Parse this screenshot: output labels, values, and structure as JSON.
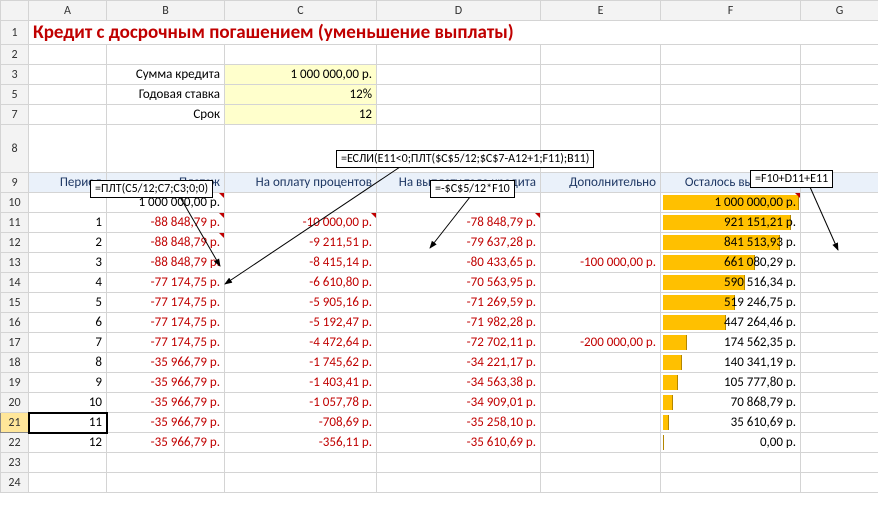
{
  "columns": [
    "A",
    "B",
    "C",
    "D",
    "E",
    "F",
    "G"
  ],
  "title": "Кредит с досрочным погашением (уменьшение выплаты)",
  "params": [
    {
      "label": "Сумма кредита",
      "value": "1 000 000,00 р."
    },
    {
      "label": "Годовая ставка",
      "value": "12%"
    },
    {
      "label": "Срок",
      "value": "12"
    }
  ],
  "callouts": {
    "plt": "=ПЛТ(С5/12;С7;С3;0;0)",
    "esli": "=ЕСЛИ(E11<0;ПЛТ($C$5/12;$C$7-A12+1;F11);B11)",
    "int": "=-$C$5/12*F10",
    "rem": "=F10+D11+E11"
  },
  "headers": {
    "period": "Период",
    "payment": "Платеж",
    "interest": "На оплату процентов",
    "body": "На выплату тела кредита",
    "extra": "Дополнительно",
    "remaining": "Осталось выплатить"
  },
  "row10": {
    "pay": "1 000 000,00 р.",
    "rem": "1 000 000,00 р."
  },
  "rows": [
    {
      "r": 11,
      "p": "1",
      "pay": "-88 848,79 р.",
      "int": "-10 000,00 р.",
      "body": "-78 848,79 р.",
      "extra": "",
      "rem": "921 151,21 р.",
      "bar": 92
    },
    {
      "r": 12,
      "p": "2",
      "pay": "-88 848,79 р.",
      "int": "-9 211,51 р.",
      "body": "-79 637,28 р.",
      "extra": "",
      "rem": "841 513,93 р.",
      "bar": 84
    },
    {
      "r": 13,
      "p": "3",
      "pay": "-88 848,79 р.",
      "int": "-8 415,14 р.",
      "body": "-80 433,65 р.",
      "extra": "-100 000,00 р.",
      "rem": "661 080,29 р.",
      "bar": 66
    },
    {
      "r": 14,
      "p": "4",
      "pay": "-77 174,75 р.",
      "int": "-6 610,80 р.",
      "body": "-70 563,95 р.",
      "extra": "",
      "rem": "590 516,34 р.",
      "bar": 59
    },
    {
      "r": 15,
      "p": "5",
      "pay": "-77 174,75 р.",
      "int": "-5 905,16 р.",
      "body": "-71 269,59 р.",
      "extra": "",
      "rem": "519 246,75 р.",
      "bar": 52
    },
    {
      "r": 16,
      "p": "6",
      "pay": "-77 174,75 р.",
      "int": "-5 192,47 р.",
      "body": "-71 982,28 р.",
      "extra": "",
      "rem": "447 264,46 р.",
      "bar": 45
    },
    {
      "r": 17,
      "p": "7",
      "pay": "-77 174,75 р.",
      "int": "-4 472,64 р.",
      "body": "-72 702,11 р.",
      "extra": "-200 000,00 р.",
      "rem": "174 562,35 р.",
      "bar": 17
    },
    {
      "r": 18,
      "p": "8",
      "pay": "-35 966,79 р.",
      "int": "-1 745,62 р.",
      "body": "-34 221,17 р.",
      "extra": "",
      "rem": "140 341,19 р.",
      "bar": 14
    },
    {
      "r": 19,
      "p": "9",
      "pay": "-35 966,79 р.",
      "int": "-1 403,41 р.",
      "body": "-34 563,38 р.",
      "extra": "",
      "rem": "105 777,80 р.",
      "bar": 11
    },
    {
      "r": 20,
      "p": "10",
      "pay": "-35 966,79 р.",
      "int": "-1 057,78 р.",
      "body": "-34 909,01 р.",
      "extra": "",
      "rem": "70 868,79 р.",
      "bar": 7
    },
    {
      "r": 21,
      "p": "11",
      "pay": "-35 966,79 р.",
      "int": "-708,69 р.",
      "body": "-35 258,10 р.",
      "extra": "",
      "rem": "35 610,69 р.",
      "bar": 4
    },
    {
      "r": 22,
      "p": "12",
      "pay": "-35 966,79 р.",
      "int": "-356,11 р.",
      "body": "-35 610,69 р.",
      "extra": "",
      "rem": "0,00 р.",
      "bar": 0
    }
  ],
  "colors": {
    "title": "#c00000",
    "neg": "#c00000",
    "yellowFill": "#ffffcc",
    "headerFill": "#eaf1fa",
    "headerBorder": "#9fb6cd",
    "bar": "#ffc000",
    "grid": "#d4d4d4"
  }
}
